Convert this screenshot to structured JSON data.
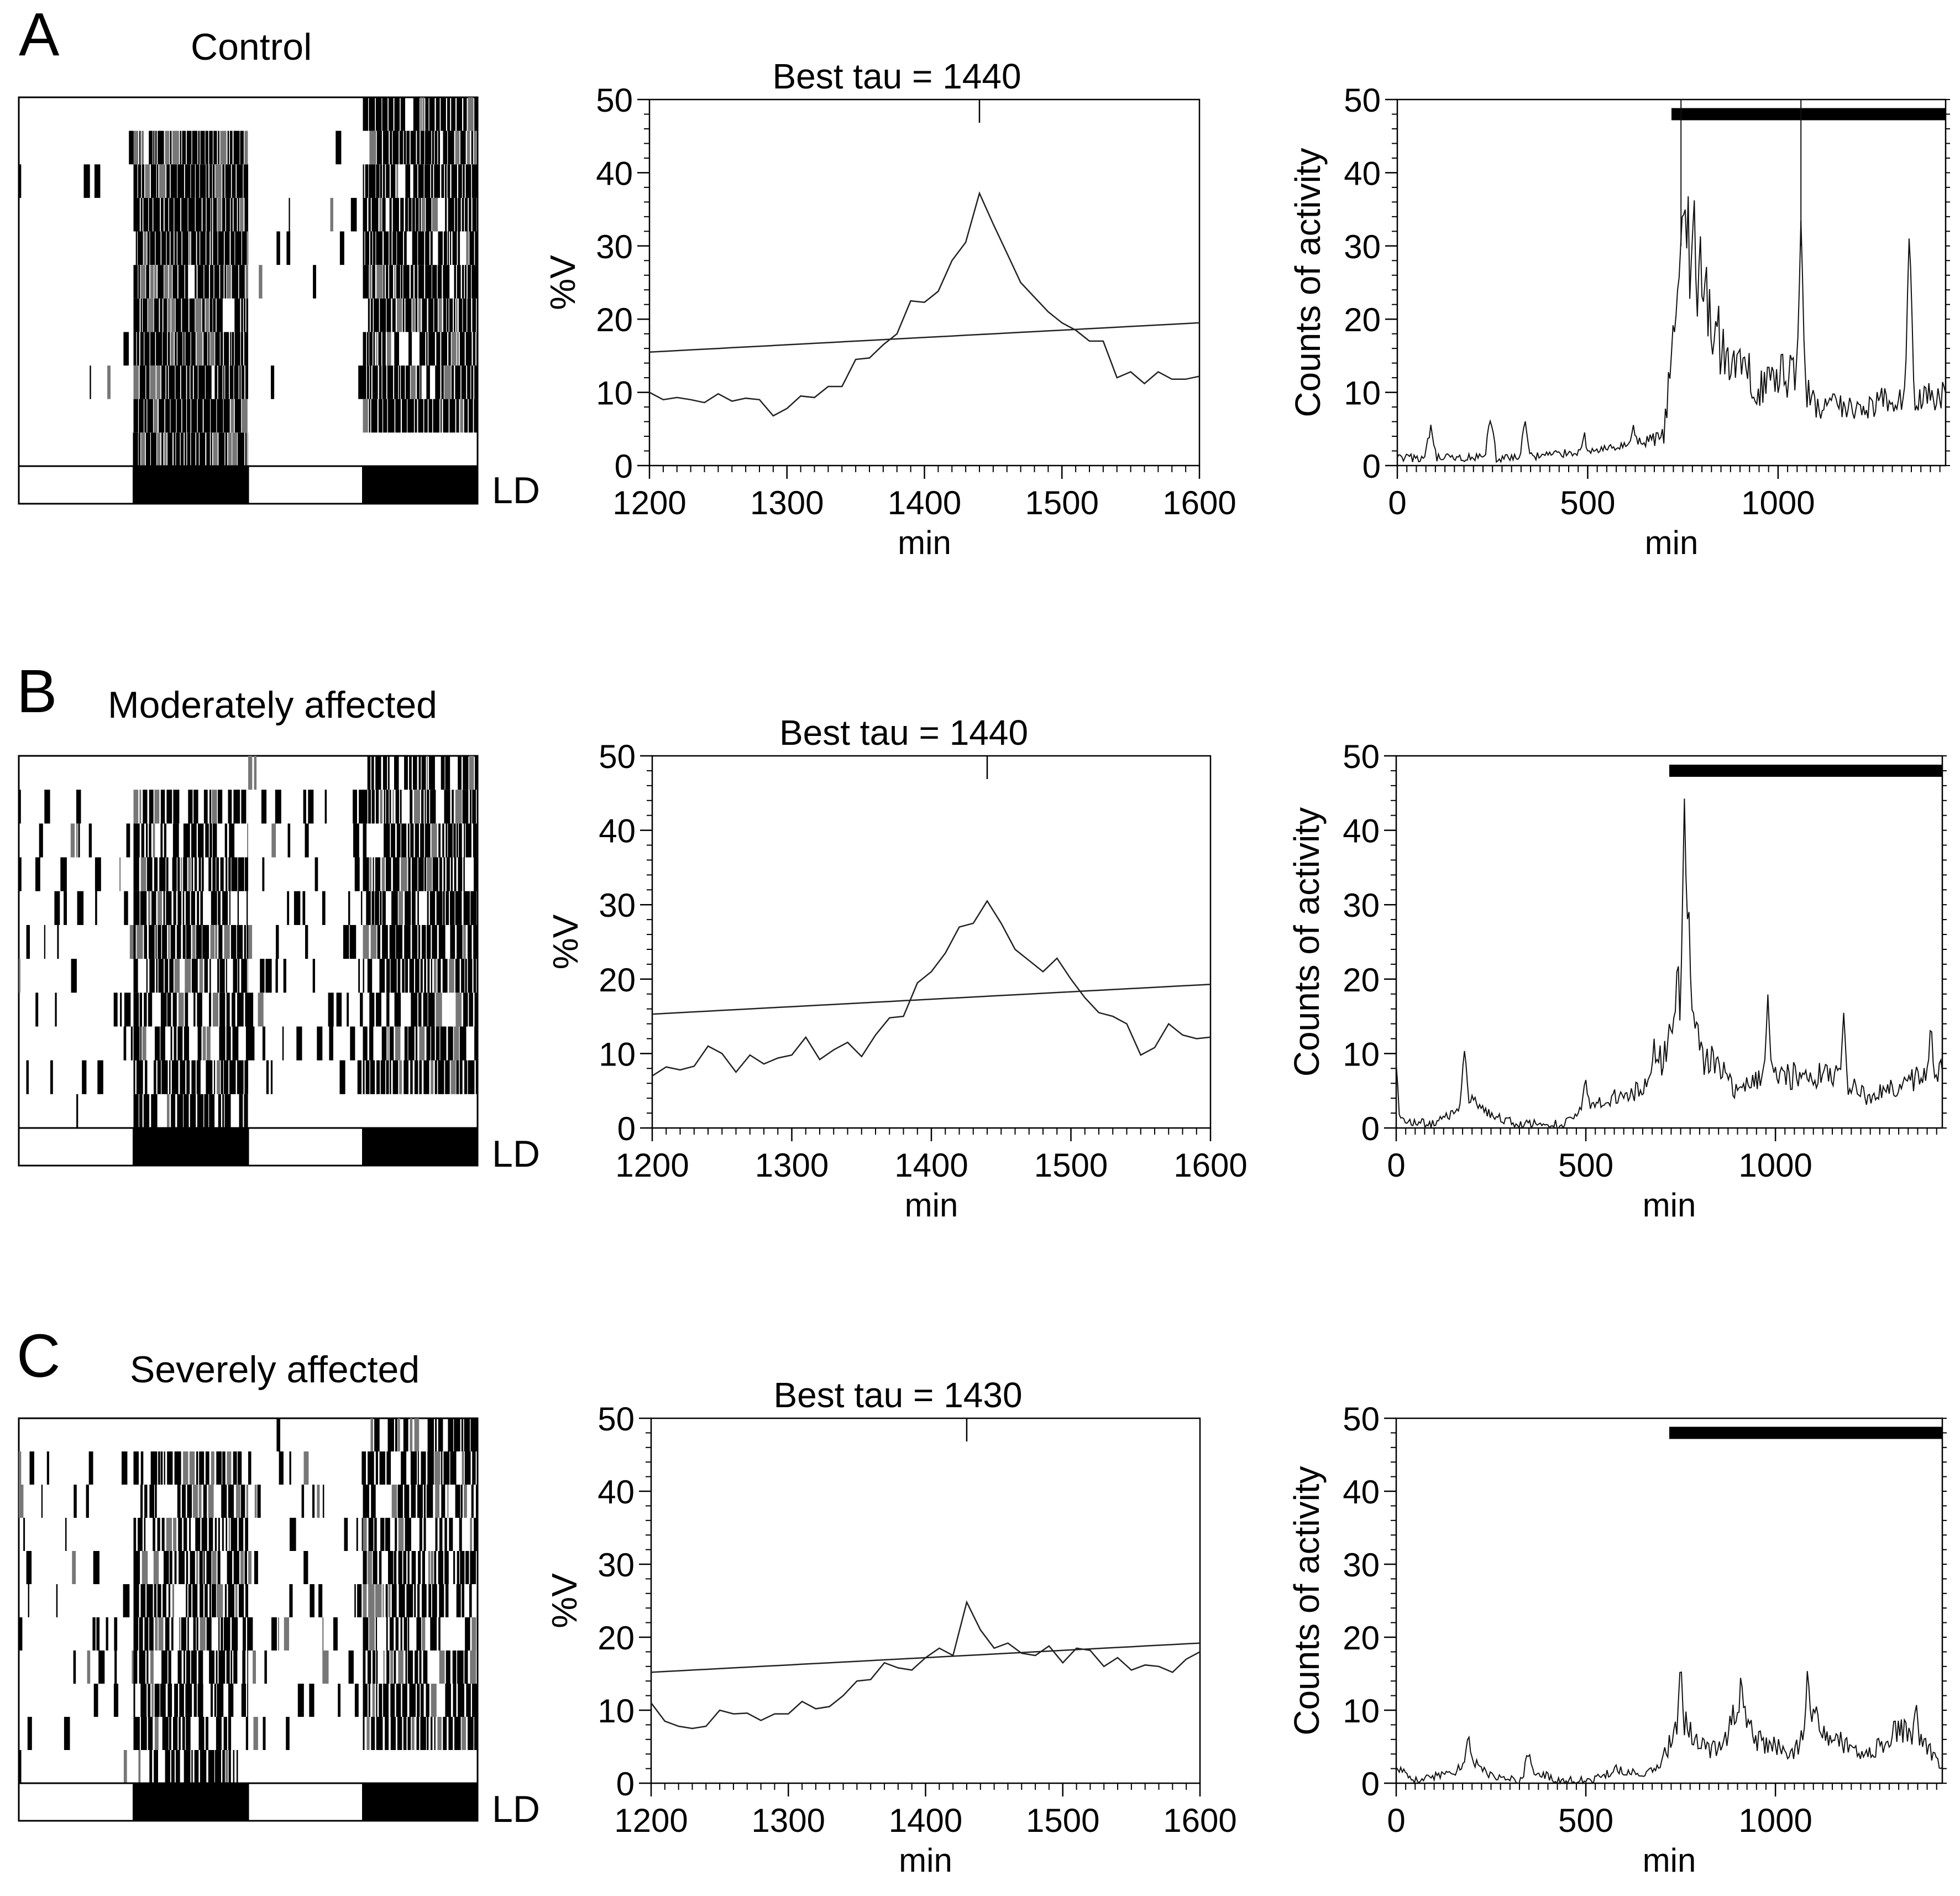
{
  "figure": {
    "rows": [
      {
        "letter": "A",
        "title": "Control"
      },
      {
        "letter": "B",
        "title": "Moderately affected"
      },
      {
        "letter": "C",
        "title": "Severely affected"
      }
    ],
    "ld_label": "LD",
    "colors": {
      "ink": "#000000",
      "background": "#ffffff"
    }
  },
  "chart_data": [
    {
      "row": "A",
      "panel": "actogram",
      "type": "heatmap",
      "label": "LD",
      "rows": 11,
      "onset_offset_rows": "dark bands in 2nd and 4th quarters",
      "ld_bar": [
        "light",
        "dark",
        "light",
        "dark"
      ]
    },
    {
      "row": "A",
      "panel": "periodogram",
      "type": "line",
      "title": "Best tau = 1440",
      "best_tau": 1440,
      "xlabel": "min",
      "ylabel": "%V",
      "xlim": [
        1200,
        1600
      ],
      "ylim": [
        0,
        50
      ],
      "xticks": [
        1200,
        1300,
        1400,
        1500,
        1600
      ],
      "yticks": [
        0,
        10,
        20,
        30,
        40,
        50
      ],
      "x": [
        1200,
        1210,
        1220,
        1230,
        1240,
        1250,
        1260,
        1270,
        1280,
        1290,
        1300,
        1310,
        1320,
        1330,
        1340,
        1350,
        1360,
        1370,
        1380,
        1390,
        1400,
        1410,
        1420,
        1430,
        1440,
        1450,
        1460,
        1470,
        1480,
        1490,
        1500,
        1510,
        1520,
        1530,
        1540,
        1550,
        1560,
        1570,
        1580,
        1590,
        1600
      ],
      "series": [
        {
          "name": "%V",
          "values": [
            10,
            9,
            9.3,
            9,
            8.6,
            9.8,
            8.8,
            9.2,
            9,
            6.8,
            7.8,
            9.5,
            9.3,
            10.8,
            10.8,
            14.5,
            14.7,
            16.5,
            18,
            22.5,
            22.3,
            23.8,
            28,
            30.5,
            37.2,
            33,
            29,
            25,
            23,
            21,
            19.5,
            18.5,
            17,
            17,
            12,
            12.8,
            11.2,
            12.8,
            11.8,
            11.8,
            12.2
          ]
        },
        {
          "name": "significance",
          "values": [
            15.5,
            15.6,
            15.7,
            15.8,
            15.9,
            16.0,
            16.1,
            16.2,
            16.3,
            16.4,
            16.5,
            16.6,
            16.7,
            16.8,
            16.9,
            17.0,
            17.1,
            17.2,
            17.3,
            17.4,
            17.5,
            17.6,
            17.7,
            17.8,
            17.9,
            18.0,
            18.1,
            18.2,
            18.3,
            18.4,
            18.5,
            18.6,
            18.7,
            18.8,
            18.9,
            19.0,
            19.1,
            19.2,
            19.3,
            19.4,
            19.5
          ]
        }
      ]
    },
    {
      "row": "A",
      "panel": "activity",
      "type": "line",
      "xlabel": "min",
      "ylabel": "Counts of activity",
      "xlim": [
        0,
        1440
      ],
      "ylim": [
        0,
        50
      ],
      "xticks": [
        0,
        500,
        1000
      ],
      "yticks": [
        0,
        10,
        20,
        30,
        40,
        50
      ],
      "dark_bar": [
        720,
        1440
      ],
      "baseline": [
        [
          0,
          1
        ],
        [
          300,
          1
        ],
        [
          600,
          2.5
        ],
        [
          700,
          4
        ],
        [
          720,
          15
        ],
        [
          760,
          33
        ],
        [
          800,
          24
        ],
        [
          860,
          15
        ],
        [
          950,
          11
        ],
        [
          1050,
          13
        ],
        [
          1100,
          8
        ],
        [
          1200,
          8
        ],
        [
          1300,
          9
        ],
        [
          1440,
          9
        ]
      ],
      "peaks": [
        [
          88,
          4.5
        ],
        [
          245,
          6
        ],
        [
          335,
          5
        ],
        [
          490,
          3.5
        ],
        [
          620,
          5
        ],
        [
          750,
          38
        ],
        [
          795,
          33
        ],
        [
          1060,
          33
        ],
        [
          1345,
          33
        ]
      ]
    },
    {
      "row": "B",
      "panel": "actogram",
      "type": "heatmap",
      "label": "LD",
      "rows": 11,
      "ld_bar": [
        "light",
        "dark",
        "light",
        "dark"
      ]
    },
    {
      "row": "B",
      "panel": "periodogram",
      "type": "line",
      "title": "Best tau = 1440",
      "best_tau": 1440,
      "xlabel": "min",
      "ylabel": "%V",
      "xlim": [
        1200,
        1600
      ],
      "ylim": [
        0,
        50
      ],
      "xticks": [
        1200,
        1300,
        1400,
        1500,
        1600
      ],
      "yticks": [
        0,
        10,
        20,
        30,
        40,
        50
      ],
      "x": [
        1200,
        1210,
        1220,
        1230,
        1240,
        1250,
        1260,
        1270,
        1280,
        1290,
        1300,
        1310,
        1320,
        1330,
        1340,
        1350,
        1360,
        1370,
        1380,
        1390,
        1400,
        1410,
        1420,
        1430,
        1440,
        1450,
        1460,
        1470,
        1480,
        1490,
        1500,
        1510,
        1520,
        1530,
        1540,
        1550,
        1560,
        1570,
        1580,
        1590,
        1600
      ],
      "series": [
        {
          "name": "%V",
          "values": [
            7,
            8.2,
            7.8,
            8.3,
            11,
            10,
            7.5,
            9.8,
            8.6,
            9.4,
            9.8,
            12.2,
            9.2,
            10.5,
            11.5,
            9.6,
            12.5,
            14.8,
            15,
            19.5,
            21,
            23.5,
            27,
            27.5,
            30.5,
            27.5,
            24,
            22.5,
            21,
            22.8,
            20,
            17.5,
            15.5,
            15,
            14,
            9.8,
            10.8,
            14,
            12.5,
            12,
            12.2
          ]
        },
        {
          "name": "significance",
          "values": [
            15.3,
            15.4,
            15.5,
            15.6,
            15.7,
            15.8,
            15.9,
            16.0,
            16.1,
            16.2,
            16.3,
            16.4,
            16.5,
            16.6,
            16.7,
            16.8,
            16.9,
            17.0,
            17.1,
            17.2,
            17.3,
            17.4,
            17.5,
            17.6,
            17.7,
            17.8,
            17.9,
            18.0,
            18.1,
            18.2,
            18.3,
            18.4,
            18.5,
            18.6,
            18.7,
            18.8,
            18.9,
            19.0,
            19.1,
            19.2,
            19.3
          ]
        }
      ]
    },
    {
      "row": "B",
      "panel": "activity",
      "type": "line",
      "xlabel": "min",
      "ylabel": "Counts of activity",
      "xlim": [
        0,
        1440
      ],
      "ylim": [
        0,
        50
      ],
      "xticks": [
        0,
        500,
        1000
      ],
      "yticks": [
        0,
        10,
        20,
        30,
        40,
        50
      ],
      "dark_bar": [
        720,
        1440
      ],
      "baseline": [
        [
          0,
          8
        ],
        [
          10,
          1
        ],
        [
          100,
          0.5
        ],
        [
          150,
          2
        ],
        [
          200,
          3.5
        ],
        [
          260,
          1.5
        ],
        [
          320,
          0.5
        ],
        [
          440,
          0.5
        ],
        [
          500,
          3
        ],
        [
          560,
          4
        ],
        [
          640,
          5
        ],
        [
          700,
          9
        ],
        [
          740,
          18
        ],
        [
          770,
          22
        ],
        [
          800,
          10
        ],
        [
          850,
          8
        ],
        [
          900,
          4.5
        ],
        [
          950,
          7
        ],
        [
          1050,
          7
        ],
        [
          1150,
          7
        ],
        [
          1250,
          4
        ],
        [
          1330,
          6
        ],
        [
          1440,
          8
        ]
      ],
      "peaks": [
        [
          180,
          10
        ],
        [
          500,
          6
        ],
        [
          680,
          10.5
        ],
        [
          760,
          44
        ],
        [
          770,
          32
        ],
        [
          980,
          17
        ],
        [
          1180,
          14.5
        ],
        [
          1410,
          14
        ]
      ]
    },
    {
      "row": "C",
      "panel": "actogram",
      "type": "heatmap",
      "label": "LD",
      "rows": 11,
      "ld_bar": [
        "light",
        "dark",
        "light",
        "dark"
      ]
    },
    {
      "row": "C",
      "panel": "periodogram",
      "type": "line",
      "title": "Best tau = 1430",
      "best_tau": 1430,
      "xlabel": "min",
      "ylabel": "%V",
      "xlim": [
        1200,
        1600
      ],
      "ylim": [
        0,
        50
      ],
      "xticks": [
        1200,
        1300,
        1400,
        1500,
        1600
      ],
      "yticks": [
        0,
        10,
        20,
        30,
        40,
        50
      ],
      "x": [
        1200,
        1210,
        1220,
        1230,
        1240,
        1250,
        1260,
        1270,
        1280,
        1290,
        1300,
        1310,
        1320,
        1330,
        1340,
        1350,
        1360,
        1370,
        1380,
        1390,
        1400,
        1410,
        1420,
        1430,
        1440,
        1450,
        1460,
        1470,
        1480,
        1490,
        1500,
        1510,
        1520,
        1530,
        1540,
        1550,
        1560,
        1570,
        1580,
        1590,
        1600
      ],
      "series": [
        {
          "name": "%V",
          "values": [
            11,
            8.5,
            7.8,
            7.5,
            7.8,
            10,
            9.5,
            9.6,
            8.6,
            9.5,
            9.5,
            11.2,
            10.2,
            10.5,
            12,
            14,
            14.2,
            16.5,
            15.8,
            15.5,
            17.2,
            18.5,
            17.5,
            24.8,
            21,
            18.5,
            19.2,
            17.8,
            17.5,
            18.8,
            16.5,
            18.5,
            18.2,
            16,
            17.2,
            15.5,
            16.2,
            16,
            15.2,
            17,
            18
          ]
        },
        {
          "name": "significance",
          "values": [
            15.2,
            15.3,
            15.4,
            15.5,
            15.6,
            15.7,
            15.8,
            15.9,
            16.0,
            16.1,
            16.2,
            16.3,
            16.4,
            16.5,
            16.6,
            16.7,
            16.8,
            16.9,
            17.0,
            17.1,
            17.2,
            17.3,
            17.4,
            17.5,
            17.6,
            17.7,
            17.8,
            17.9,
            18.0,
            18.1,
            18.2,
            18.3,
            18.4,
            18.5,
            18.6,
            18.7,
            18.8,
            18.9,
            19.0,
            19.1,
            19.2
          ]
        }
      ]
    },
    {
      "row": "C",
      "panel": "activity",
      "type": "line",
      "xlabel": "min",
      "ylabel": "Counts of activity",
      "xlim": [
        0,
        1440
      ],
      "ylim": [
        0,
        50
      ],
      "xticks": [
        0,
        500,
        1000
      ],
      "yticks": [
        0,
        10,
        20,
        30,
        40,
        50
      ],
      "dark_bar": [
        720,
        1440
      ],
      "baseline": [
        [
          0,
          2
        ],
        [
          50,
          0.5
        ],
        [
          150,
          1.5
        ],
        [
          200,
          3
        ],
        [
          250,
          1
        ],
        [
          330,
          0.3
        ],
        [
          380,
          1.5
        ],
        [
          420,
          0.3
        ],
        [
          520,
          0.3
        ],
        [
          580,
          2
        ],
        [
          650,
          1
        ],
        [
          700,
          3
        ],
        [
          750,
          9
        ],
        [
          800,
          5
        ],
        [
          850,
          4.5
        ],
        [
          900,
          10
        ],
        [
          950,
          6
        ],
        [
          1000,
          5
        ],
        [
          1050,
          4
        ],
        [
          1100,
          10
        ],
        [
          1150,
          6
        ],
        [
          1250,
          4
        ],
        [
          1330,
          7.5
        ],
        [
          1400,
          5
        ],
        [
          1440,
          2
        ]
      ],
      "peaks": [
        [
          190,
          6.5
        ],
        [
          350,
          4
        ],
        [
          750,
          16
        ],
        [
          910,
          15
        ],
        [
          1085,
          15
        ],
        [
          1370,
          11
        ]
      ]
    }
  ]
}
